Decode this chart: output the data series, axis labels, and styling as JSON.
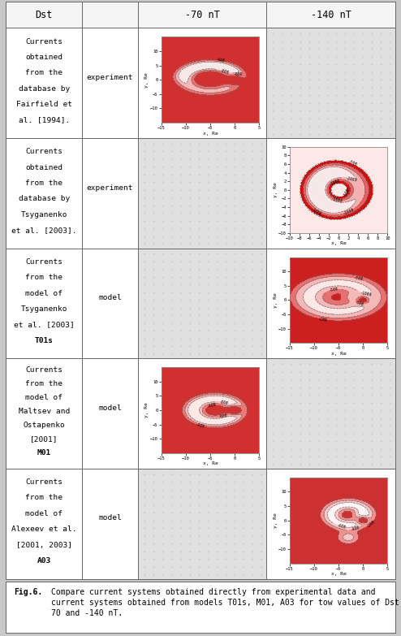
{
  "fig_width": 4.94,
  "fig_height": 7.83,
  "dpi": 100,
  "bg_color": "#c8c8c8",
  "table_bg": "#ffffff",
  "cell_bg": "#ffffff",
  "dotted_bg": "#d8d8d8",
  "border_color": "#666666",
  "header_bg": "#ffffff",
  "caption_bg": "#ffffff",
  "rows": [
    {
      "label_lines": [
        "Currents",
        "obtained",
        "from the",
        "database by",
        "Fairfield et",
        "al. [1994]."
      ],
      "bold_words": [
        "database"
      ],
      "type_label": "experiment",
      "plot_col": 2,
      "style": "fairfield",
      "xlim": [
        -15,
        5
      ],
      "ylim": [
        -15,
        15
      ],
      "xticks": [
        -15,
        -10,
        -5,
        0,
        5
      ],
      "yticks": [
        -10,
        -5,
        0,
        5,
        10
      ],
      "contour_levels": [
        -800,
        -600,
        -400
      ],
      "fill_colors": [
        "#fde8e8",
        "#f5b8b8",
        "#ed7070",
        "#d03030"
      ],
      "fill_levels": [
        -900,
        -800,
        -600,
        -400,
        0
      ]
    },
    {
      "label_lines": [
        "Currents",
        "obtained",
        "from the",
        "database by",
        "Tsyganenko",
        "et al. [2003]."
      ],
      "bold_words": [
        "database"
      ],
      "type_label": "experiment",
      "plot_col": 3,
      "style": "tsyg_exp",
      "xlim": [
        -10,
        10
      ],
      "ylim": [
        -10,
        10
      ],
      "xticks": [
        -10,
        -8,
        -6,
        -4,
        -2,
        0,
        2,
        4,
        6,
        8,
        10
      ],
      "yticks": [
        -10,
        -8,
        -6,
        -4,
        -2,
        0,
        2,
        4,
        6,
        8,
        10
      ],
      "contour_levels": [
        -2000,
        -1500,
        -1000,
        -500
      ],
      "fill_colors": [
        "#fde8e8",
        "#f5b0b0",
        "#e86060",
        "#cc1010"
      ],
      "fill_levels": [
        -2500,
        -2000,
        -1500,
        -1000,
        -500,
        0
      ]
    },
    {
      "label_lines": [
        "Currents",
        "from the",
        "model of",
        "Tsyganenko",
        "et al. [2003]",
        "T01s"
      ],
      "bold_words": [
        "model",
        "T01s"
      ],
      "type_label": "model",
      "plot_col": 3,
      "style": "t01s",
      "xlim": [
        -15,
        5
      ],
      "ylim": [
        -15,
        15
      ],
      "xticks": [
        -15,
        -10,
        -5,
        0,
        5
      ],
      "yticks": [
        -10,
        -5,
        0,
        5,
        10
      ],
      "contour_levels": [
        -1000,
        -500,
        -200
      ],
      "fill_colors": [
        "#fde8e8",
        "#f5b8b8",
        "#e87070",
        "#cc2020"
      ],
      "fill_levels": [
        -1200,
        -1000,
        -500,
        -200,
        0
      ]
    },
    {
      "label_lines": [
        "Currents",
        "from the",
        "model of",
        "Maltsev and",
        "Ostapenko",
        "[2001]",
        "M01"
      ],
      "bold_words": [
        "model",
        "M01"
      ],
      "type_label": "model",
      "plot_col": 2,
      "style": "maltsev",
      "xlim": [
        -15,
        5
      ],
      "ylim": [
        -15,
        15
      ],
      "xticks": [
        -15,
        -10,
        -5,
        0,
        5
      ],
      "yticks": [
        -10,
        -5,
        0,
        5,
        10
      ],
      "contour_levels": [
        -800,
        -600,
        -400
      ],
      "fill_colors": [
        "#fde8e8",
        "#f5b8b8",
        "#ed7878",
        "#d03030"
      ],
      "fill_levels": [
        -1000,
        -800,
        -600,
        -400,
        0
      ]
    },
    {
      "label_lines": [
        "Currents",
        "from the",
        "model of",
        "Alexeev et al.",
        "[2001, 2003]",
        "A03"
      ],
      "bold_words": [
        "model",
        "A03"
      ],
      "type_label": "model",
      "plot_col": 3,
      "style": "alexeev",
      "xlim": [
        -15,
        5
      ],
      "ylim": [
        -15,
        15
      ],
      "xticks": [
        -15,
        -10,
        -5,
        0,
        5
      ],
      "yticks": [
        -10,
        -5,
        0,
        5,
        10
      ],
      "contour_levels": [
        -600,
        -400,
        -200
      ],
      "fill_colors": [
        "#fdf5f5",
        "#f8c8c8",
        "#f09090",
        "#cc3030"
      ],
      "fill_levels": [
        -800,
        -600,
        -400,
        -200,
        0
      ]
    }
  ],
  "caption_bold": "Fig.6.",
  "caption_normal": " Compare current systems obtained directly from experimental data and current systems obtained from models T01s, M01, A03 for tow values of Dst -70 and -140 nT.",
  "font_family": "monospace",
  "label_fontsize": 6.8,
  "type_fontsize": 6.8,
  "header_fontsize": 8.5,
  "caption_fontsize": 7.0,
  "plot_tick_fontsize": 4.0,
  "plot_label_fontsize": 4.5
}
